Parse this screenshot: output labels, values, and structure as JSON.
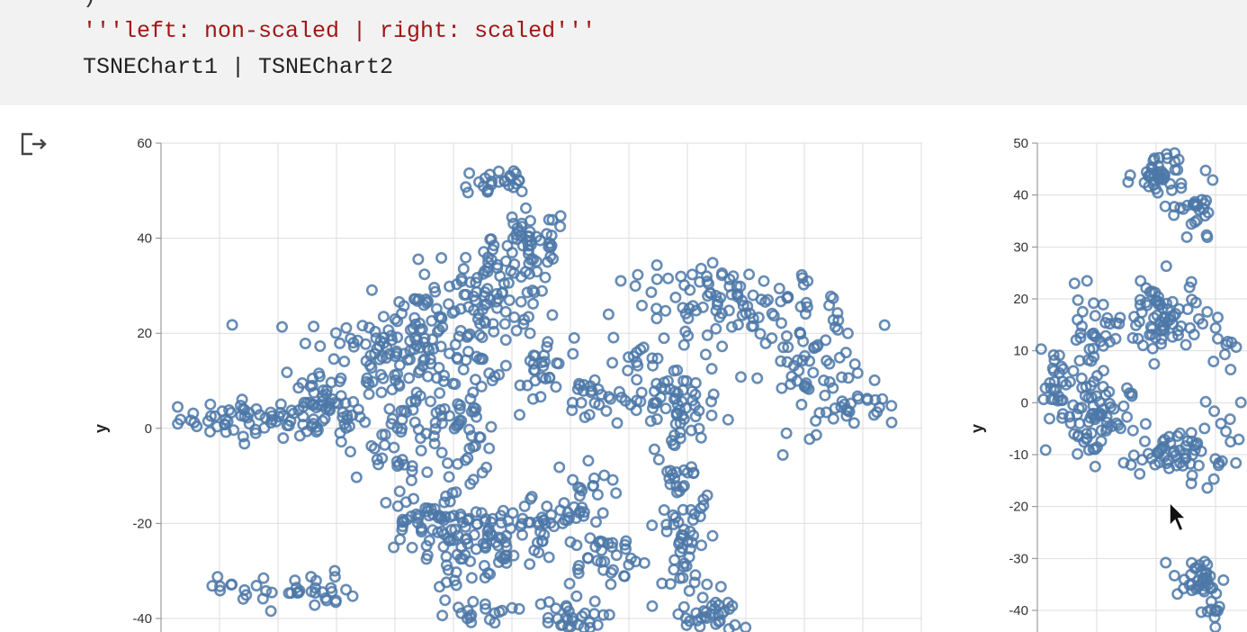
{
  "code": {
    "paren_line": ")",
    "string_line": "'''left: non-scaled | right: scaled'''",
    "expr_line": "TSNEChart1 | TSNEChart2"
  },
  "colors": {
    "point_stroke": "#4c78a8",
    "grid": "#dddddd",
    "axis": "#888888",
    "code_bg": "#f2f2f2",
    "string": "#a31515"
  },
  "output_icon": "output-arrow-icon",
  "chart_data": [
    {
      "type": "scatter",
      "title": "",
      "xlabel": "",
      "ylabel": "y",
      "ylim": [
        -40,
        60
      ],
      "yticks": [
        "60",
        "40",
        "20",
        "0",
        "-20",
        "-40"
      ],
      "grid": true,
      "marker": "open-circle",
      "clusters": [
        {
          "x": -75,
          "y": 2,
          "spread": [
            10,
            2
          ],
          "n": 60
        },
        {
          "x": -57,
          "y": 3,
          "spread": [
            5,
            3
          ],
          "n": 45
        },
        {
          "x": -43,
          "y": 16,
          "spread": [
            11,
            5
          ],
          "n": 80
        },
        {
          "x": -32,
          "y": 22,
          "spread": [
            7,
            6
          ],
          "n": 50
        },
        {
          "x": -28,
          "y": 6,
          "spread": [
            6,
            5
          ],
          "n": 35
        },
        {
          "x": -16,
          "y": 22,
          "spread": [
            7,
            6
          ],
          "n": 60
        },
        {
          "x": -12,
          "y": 52,
          "spread": [
            5,
            2
          ],
          "n": 25
        },
        {
          "x": -3,
          "y": 40,
          "spread": [
            5,
            3
          ],
          "n": 40
        },
        {
          "x": -9,
          "y": 30,
          "spread": [
            8,
            4
          ],
          "n": 45
        },
        {
          "x": 1,
          "y": 13,
          "spread": [
            3,
            4
          ],
          "n": 25
        },
        {
          "x": -37,
          "y": -2,
          "spread": [
            7,
            4
          ],
          "n": 35
        },
        {
          "x": -19,
          "y": -2,
          "spread": [
            4,
            4
          ],
          "n": 30
        },
        {
          "x": -33,
          "y": -20,
          "spread": [
            5,
            3
          ],
          "n": 40
        },
        {
          "x": -24,
          "y": -25,
          "spread": [
            3,
            7
          ],
          "n": 35
        },
        {
          "x": -13,
          "y": -24,
          "spread": [
            7,
            5
          ],
          "n": 50
        },
        {
          "x": -2,
          "y": -20,
          "spread": [
            6,
            3
          ],
          "n": 30
        },
        {
          "x": 10,
          "y": -14,
          "spread": [
            4,
            4
          ],
          "n": 30
        },
        {
          "x": 16,
          "y": -27,
          "spread": [
            6,
            3
          ],
          "n": 35
        },
        {
          "x": 6,
          "y": -40,
          "spread": [
            5,
            2
          ],
          "n": 30
        },
        {
          "x": -17,
          "y": -40,
          "spread": [
            5,
            2
          ],
          "n": 25
        },
        {
          "x": -67,
          "y": -34,
          "spread": [
            9,
            2
          ],
          "n": 40
        },
        {
          "x": 38,
          "y": -22,
          "spread": [
            4,
            12
          ],
          "n": 80
        },
        {
          "x": 45,
          "y": -40,
          "spread": [
            4,
            2
          ],
          "n": 30
        },
        {
          "x": 34,
          "y": 6,
          "spread": [
            7,
            4
          ],
          "n": 60
        },
        {
          "x": 51,
          "y": 26,
          "spread": [
            15,
            4
          ],
          "n": 110
        },
        {
          "x": 71,
          "y": 12,
          "spread": [
            6,
            6
          ],
          "n": 50
        },
        {
          "x": 82,
          "y": 4,
          "spread": [
            5,
            2
          ],
          "n": 25
        },
        {
          "x": 14,
          "y": 6,
          "spread": [
            4,
            3
          ],
          "n": 25
        },
        {
          "x": 25,
          "y": 15,
          "spread": [
            2,
            2
          ],
          "n": 8
        }
      ]
    },
    {
      "type": "scatter",
      "title": "",
      "xlabel": "",
      "ylabel": "y",
      "ylim": [
        -40,
        50
      ],
      "yticks": [
        "50",
        "40",
        "30",
        "20",
        "10",
        "0",
        "-10",
        "-20",
        "-30",
        "-40"
      ],
      "grid": true,
      "marker": "open-circle",
      "clusters": [
        {
          "x": 8,
          "y": 44,
          "spread": [
            2,
            2.5
          ],
          "n": 45
        },
        {
          "x": 14,
          "y": 36,
          "spread": [
            1.5,
            3
          ],
          "n": 25
        },
        {
          "x": 8,
          "y": 16,
          "spread": [
            3,
            4
          ],
          "n": 70
        },
        {
          "x": -3,
          "y": 13,
          "spread": [
            2,
            4
          ],
          "n": 35
        },
        {
          "x": -9,
          "y": 5,
          "spread": [
            1.5,
            3
          ],
          "n": 30
        },
        {
          "x": -3,
          "y": -3,
          "spread": [
            3,
            4
          ],
          "n": 70
        },
        {
          "x": 9,
          "y": -10,
          "spread": [
            3,
            2
          ],
          "n": 40
        },
        {
          "x": 15,
          "y": -10,
          "spread": [
            3,
            5
          ],
          "n": 25
        },
        {
          "x": 14,
          "y": -34,
          "spread": [
            2,
            2
          ],
          "n": 35
        },
        {
          "x": 17,
          "y": -40,
          "spread": [
            1,
            2
          ],
          "n": 12
        },
        {
          "x": 18,
          "y": 12,
          "spread": [
            1,
            3
          ],
          "n": 10
        }
      ]
    }
  ]
}
